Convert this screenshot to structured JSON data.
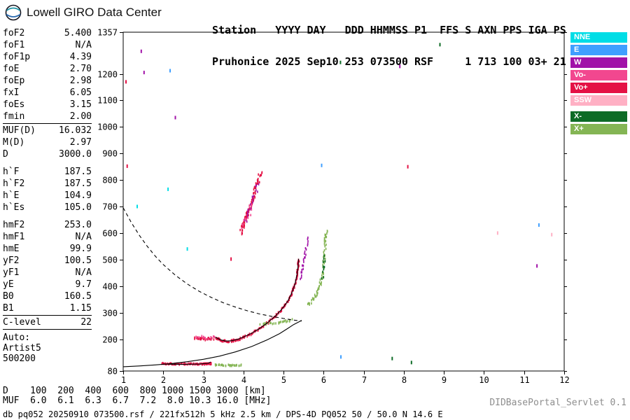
{
  "logo": {
    "text": "Lowell GIRO Data Center"
  },
  "header": {
    "line1": "Station   YYYY DAY   DDD HHMMSS P1  FFS S AXN PPS IGA PS",
    "line2": "Pruhonice 2025 Sep10 253 073500 RSF     1 713 100 03+ 21"
  },
  "params": {
    "frequencies": [
      [
        "foF2",
        "5.400"
      ],
      [
        "foF1",
        "N/A"
      ],
      [
        "foF1p",
        "4.39"
      ],
      [
        "foE",
        "2.70"
      ],
      [
        "foEp",
        "2.98"
      ],
      [
        "fxI",
        "6.05"
      ],
      [
        "foEs",
        "3.15"
      ],
      [
        "fmin",
        "2.00"
      ]
    ],
    "muf": [
      [
        "MUF(D)",
        "16.032"
      ],
      [
        "M(D)",
        "2.97"
      ],
      [
        "D",
        "3000.0"
      ]
    ],
    "heights": [
      [
        "h`F",
        "187.5"
      ],
      [
        "h`F2",
        "187.5"
      ],
      [
        "h`E",
        "104.9"
      ],
      [
        "h`Es",
        "105.0"
      ]
    ],
    "layers": [
      [
        "hmF2",
        "253.0"
      ],
      [
        "hmF1",
        "N/A"
      ],
      [
        "hmE",
        "99.9"
      ],
      [
        "yF2",
        "100.5"
      ],
      [
        "yF1",
        "N/A"
      ],
      [
        "yE",
        "9.7"
      ],
      [
        "B0",
        "160.5"
      ],
      [
        "B1",
        "1.15"
      ]
    ],
    "c_level": [
      "C-level",
      "22"
    ],
    "auto": [
      "Auto:",
      "Artist5",
      "500200"
    ]
  },
  "legend": [
    {
      "label": "NNE",
      "color": "nne"
    },
    {
      "label": "E",
      "color": "e"
    },
    {
      "label": "W",
      "color": "w"
    },
    {
      "label": "Vo-",
      "color": "vo_minus"
    },
    {
      "label": "Vo+",
      "color": "vo_plus"
    },
    {
      "label": "SSW",
      "color": "ssw"
    },
    {
      "label": "X-",
      "color": "x_minus",
      "gap": true
    },
    {
      "label": "X+",
      "color": "x_plus"
    }
  ],
  "footer": {
    "d_row": "D    100  200  400  600  800 1000 1500 3000 [km]",
    "muf_row": "MUF  6.0  6.1  6.3  6.7  7.2  8.0 10.3 16.0 [MHz]",
    "db_line": "db pq052 20250910 073500.rsf / 221fx512h 5 kHz 2.5 km / DPS-4D PQ052 50 / 50.0 N 14.6 E",
    "servlet": "DIDBasePortal_Servlet 0.1"
  },
  "chart_data": {
    "type": "scatter",
    "title": "",
    "xlabel": "[MHz]",
    "ylabel": "[km]",
    "xlim": [
      1,
      12
    ],
    "ylim": [
      80,
      1357
    ],
    "x_ticks": [
      1,
      2,
      3,
      4,
      5,
      6,
      7,
      8,
      9,
      10,
      11,
      12
    ],
    "y_ticks": [
      80,
      200,
      300,
      400,
      500,
      600,
      700,
      800,
      900,
      1000,
      1100,
      1200,
      1357
    ],
    "grid": false,
    "legend_position": "right",
    "palette": {
      "nne": "#00dde6",
      "e": "#3f9fff",
      "w": "#a112a8",
      "vo_minus": "#f2478f",
      "vo_plus": "#e41245",
      "ssw": "#ffb0c4",
      "x_minus": "#0d6b26",
      "x_plus": "#84b554"
    },
    "traces": [
      {
        "name": "Es-O",
        "color": "vo_plus",
        "n": 90,
        "jf": 0.02,
        "jh": 2.5,
        "pts": [
          [
            1.95,
            108
          ],
          [
            2.3,
            106
          ],
          [
            2.7,
            106
          ],
          [
            3.05,
            106
          ],
          [
            3.2,
            108
          ]
        ]
      },
      {
        "name": "Es-X",
        "color": "x_plus",
        "n": 30,
        "jf": 0.03,
        "jh": 2.5,
        "pts": [
          [
            3.3,
            103
          ],
          [
            3.62,
            101
          ],
          [
            3.95,
            102
          ]
        ]
      },
      {
        "name": "F-lead",
        "color": "vo_plus",
        "n": 30,
        "jf": 0.03,
        "jh": 4,
        "pts": [
          [
            2.78,
            205
          ],
          [
            3.0,
            200
          ],
          [
            3.25,
            201
          ]
        ]
      },
      {
        "name": "F-lead-pink",
        "color": "vo_minus",
        "n": 12,
        "jf": 0.04,
        "jh": 5,
        "pts": [
          [
            2.8,
            210
          ],
          [
            3.05,
            204
          ],
          [
            3.3,
            206
          ]
        ]
      },
      {
        "name": "F-O",
        "color": "vo_plus",
        "n": 170,
        "jf": 0.02,
        "jh": 3.5,
        "pts": [
          [
            3.3,
            206
          ],
          [
            3.42,
            197
          ],
          [
            3.55,
            192
          ],
          [
            3.7,
            193
          ],
          [
            3.85,
            198
          ],
          [
            4.0,
            207
          ],
          [
            4.2,
            221
          ],
          [
            4.4,
            239
          ],
          [
            4.6,
            261
          ],
          [
            4.8,
            287
          ],
          [
            4.95,
            311
          ],
          [
            5.1,
            341
          ],
          [
            5.2,
            371
          ],
          [
            5.28,
            404
          ],
          [
            5.33,
            439
          ],
          [
            5.36,
            471
          ],
          [
            5.375,
            498
          ]
        ]
      },
      {
        "name": "F-top-W",
        "color": "w",
        "n": 24,
        "jf": 0.025,
        "jh": 7,
        "pts": [
          [
            5.42,
            428
          ],
          [
            5.48,
            464
          ],
          [
            5.52,
            500
          ],
          [
            5.56,
            540
          ],
          [
            5.61,
            582
          ]
        ]
      },
      {
        "name": "2F-O",
        "color": "vo_plus",
        "n": 85,
        "jf": 0.04,
        "jh": 9,
        "pts": [
          [
            3.93,
            602
          ],
          [
            4.0,
            636
          ],
          [
            4.08,
            668
          ],
          [
            4.16,
            700
          ],
          [
            4.25,
            738
          ],
          [
            4.34,
            780
          ],
          [
            4.43,
            826
          ]
        ]
      },
      {
        "name": "2F-W",
        "color": "w",
        "n": 18,
        "jf": 0.05,
        "jh": 10,
        "pts": [
          [
            4.05,
            650
          ],
          [
            4.2,
            712
          ],
          [
            4.36,
            788
          ]
        ]
      },
      {
        "name": "2F-pink",
        "color": "vo_minus",
        "n": 12,
        "jf": 0.05,
        "jh": 9,
        "pts": [
          [
            3.98,
            616
          ],
          [
            4.1,
            662
          ],
          [
            4.22,
            708
          ]
        ]
      },
      {
        "name": "X-flat",
        "color": "x_plus",
        "n": 26,
        "jf": 0.05,
        "jh": 3.5,
        "pts": [
          [
            4.42,
            256
          ],
          [
            4.72,
            260
          ],
          [
            5.0,
            265
          ],
          [
            5.22,
            272
          ]
        ]
      },
      {
        "name": "X-rise",
        "color": "x_plus",
        "n": 70,
        "jf": 0.03,
        "jh": 6,
        "pts": [
          [
            5.62,
            330
          ],
          [
            5.75,
            352
          ],
          [
            5.85,
            378
          ],
          [
            5.93,
            412
          ],
          [
            5.98,
            450
          ],
          [
            6.01,
            492
          ],
          [
            6.03,
            534
          ],
          [
            6.05,
            578
          ],
          [
            6.065,
            606
          ]
        ]
      },
      {
        "name": "X-rise-dark",
        "color": "x_minus",
        "n": 10,
        "jf": 0.03,
        "jh": 6,
        "pts": [
          [
            5.96,
            430
          ],
          [
            6.0,
            472
          ],
          [
            6.02,
            512
          ]
        ]
      }
    ],
    "curves": [
      {
        "name": "muf-transmission-dashed",
        "dashed": true,
        "pts": [
          [
            1.0,
            695
          ],
          [
            1.2,
            640
          ],
          [
            1.4,
            592
          ],
          [
            1.6,
            550
          ],
          [
            1.8,
            513
          ],
          [
            2.0,
            481
          ],
          [
            2.3,
            441
          ],
          [
            2.6,
            408
          ],
          [
            2.9,
            380
          ],
          [
            3.2,
            357
          ],
          [
            3.5,
            337
          ],
          [
            3.8,
            321
          ],
          [
            4.1,
            307
          ],
          [
            4.4,
            295
          ],
          [
            4.7,
            286
          ],
          [
            5.0,
            278
          ],
          [
            5.2,
            273
          ],
          [
            5.35,
            270
          ],
          [
            5.45,
            268
          ]
        ]
      },
      {
        "name": "lower-transmission-solid",
        "dashed": false,
        "pts": [
          [
            1.0,
            96
          ],
          [
            1.4,
            99
          ],
          [
            1.8,
            103
          ],
          [
            2.2,
            108
          ],
          [
            2.6,
            115
          ],
          [
            3.0,
            124
          ],
          [
            3.4,
            136
          ],
          [
            3.8,
            152
          ],
          [
            4.2,
            172
          ],
          [
            4.6,
            198
          ],
          [
            4.9,
            221
          ],
          [
            5.1,
            240
          ],
          [
            5.25,
            255
          ],
          [
            5.38,
            265
          ],
          [
            5.45,
            271
          ]
        ]
      },
      {
        "name": "restored-trace-F",
        "dashed": false,
        "pts": [
          [
            3.3,
            208
          ],
          [
            3.42,
            198
          ],
          [
            3.55,
            193
          ],
          [
            3.7,
            194
          ],
          [
            3.85,
            199
          ],
          [
            4.0,
            208
          ],
          [
            4.2,
            222
          ],
          [
            4.4,
            240
          ],
          [
            4.6,
            262
          ],
          [
            4.8,
            288
          ],
          [
            4.95,
            312
          ],
          [
            5.1,
            342
          ],
          [
            5.2,
            372
          ],
          [
            5.28,
            405
          ],
          [
            5.33,
            440
          ],
          [
            5.36,
            472
          ],
          [
            5.375,
            503
          ]
        ]
      },
      {
        "name": "restored-trace-E",
        "dashed": false,
        "pts": [
          [
            2.0,
            106
          ],
          [
            2.5,
            105
          ],
          [
            2.9,
            106
          ],
          [
            3.12,
            109
          ],
          [
            3.18,
            114
          ]
        ]
      }
    ],
    "noise": [
      [
        1.45,
        1285,
        "w"
      ],
      [
        1.52,
        1205,
        "w"
      ],
      [
        1.07,
        1170,
        "vo_plus"
      ],
      [
        2.17,
        1212,
        "e"
      ],
      [
        7.9,
        1228,
        "w"
      ],
      [
        6.42,
        1243,
        "x_minus"
      ],
      [
        8.9,
        1310,
        "x_minus"
      ],
      [
        5.95,
        855,
        "e"
      ],
      [
        8.1,
        850,
        "vo_plus"
      ],
      [
        1.1,
        852,
        "vo_plus"
      ],
      [
        2.12,
        765,
        "nne"
      ],
      [
        1.35,
        700,
        "nne"
      ],
      [
        11.37,
        630,
        "e"
      ],
      [
        11.69,
        594,
        "ssw"
      ],
      [
        10.34,
        600,
        "ssw"
      ],
      [
        3.69,
        502,
        "vo_plus"
      ],
      [
        11.32,
        476,
        "w"
      ],
      [
        6.43,
        133,
        "e"
      ],
      [
        7.71,
        127,
        "x_minus"
      ],
      [
        8.19,
        112,
        "x_minus"
      ],
      [
        2.6,
        540,
        "nne"
      ],
      [
        2.3,
        1035,
        "w"
      ]
    ]
  }
}
